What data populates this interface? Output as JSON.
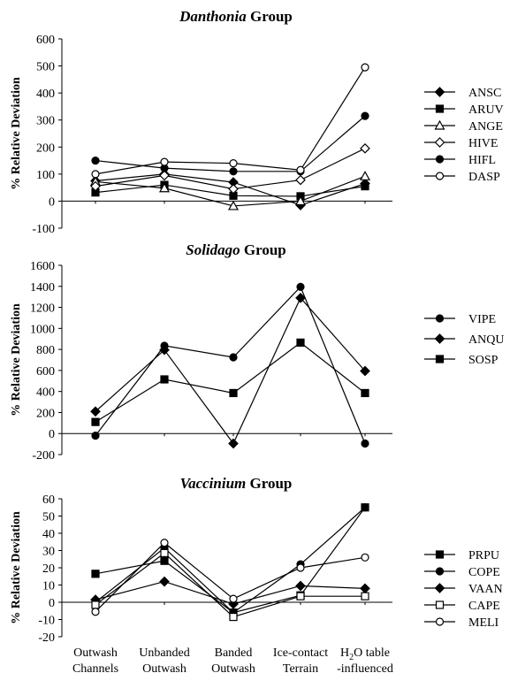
{
  "chart_data": [
    {
      "type": "line",
      "title_italic": "Danthonia",
      "title_rest": " Group",
      "ylabel": "% Relative Deviation",
      "ylim": [
        -100,
        600
      ],
      "yticks": [
        -100,
        0,
        100,
        200,
        300,
        400,
        500,
        600
      ],
      "categories": [
        "Outwash Channels",
        "Unbanded Outwash",
        "Banded Outwash",
        "Ice-contact Terrain",
        "H2O table -influenced"
      ],
      "show_categories": false,
      "series": [
        {
          "name": "ANSC",
          "marker": "diamond",
          "filled": true,
          "values": [
            75,
            100,
            70,
            -15,
            65
          ]
        },
        {
          "name": "ARUV",
          "marker": "square",
          "filled": true,
          "values": [
            32,
            60,
            20,
            18,
            55
          ]
        },
        {
          "name": "ANGE",
          "marker": "triangle",
          "filled": false,
          "values": [
            72,
            48,
            -18,
            0,
            92
          ]
        },
        {
          "name": "HIVE",
          "marker": "diamond",
          "filled": false,
          "values": [
            55,
            95,
            45,
            78,
            195
          ]
        },
        {
          "name": "HIFL",
          "marker": "circle",
          "filled": true,
          "values": [
            150,
            122,
            110,
            110,
            315
          ]
        },
        {
          "name": "DASP",
          "marker": "circle",
          "filled": false,
          "values": [
            100,
            145,
            140,
            115,
            495
          ]
        }
      ]
    },
    {
      "type": "line",
      "title_italic": "Solidago",
      "title_rest": " Group",
      "ylabel": "% Relative Deviation",
      "ylim": [
        -200,
        1600
      ],
      "yticks": [
        -200,
        0,
        200,
        400,
        600,
        800,
        1000,
        1200,
        1400,
        1600
      ],
      "categories": [
        "Outwash Channels",
        "Unbanded Outwash",
        "Banded Outwash",
        "Ice-contact Terrain",
        "H2O table -influenced"
      ],
      "show_categories": false,
      "series": [
        {
          "name": "VIPE",
          "marker": "circle",
          "filled": true,
          "values": [
            -20,
            835,
            725,
            1395,
            -95
          ]
        },
        {
          "name": "ANQU",
          "marker": "diamond",
          "filled": true,
          "values": [
            210,
            795,
            -95,
            1290,
            595
          ]
        },
        {
          "name": "SOSP",
          "marker": "square",
          "filled": true,
          "values": [
            110,
            515,
            385,
            865,
            385
          ]
        }
      ]
    },
    {
      "type": "line",
      "title_italic": "Vaccinium",
      "title_rest": " Group",
      "ylabel": "% Relative Deviation",
      "ylim": [
        -20,
        60
      ],
      "yticks": [
        -20,
        -10,
        0,
        10,
        20,
        30,
        40,
        50,
        60
      ],
      "categories": [
        "Outwash Channels",
        "Unbanded Outwash",
        "Banded Outwash",
        "Ice-contact Terrain",
        "H2O table -influenced"
      ],
      "show_categories": true,
      "series": [
        {
          "name": "PRPU",
          "marker": "square",
          "filled": true,
          "values": [
            16.5,
            24,
            -6,
            4,
            55
          ]
        },
        {
          "name": "COPE",
          "marker": "circle",
          "filled": true,
          "values": [
            0,
            31.5,
            -6,
            22,
            55
          ]
        },
        {
          "name": "VAAN",
          "marker": "diamond",
          "filled": true,
          "values": [
            1.5,
            12,
            -1,
            9.5,
            8
          ]
        },
        {
          "name": "CAPE",
          "marker": "square",
          "filled": false,
          "values": [
            -1.5,
            28.5,
            -8.5,
            3.5,
            3.5
          ]
        },
        {
          "name": "MELI",
          "marker": "circle",
          "filled": false,
          "values": [
            -5.5,
            34.5,
            2,
            20,
            26
          ]
        }
      ]
    }
  ]
}
